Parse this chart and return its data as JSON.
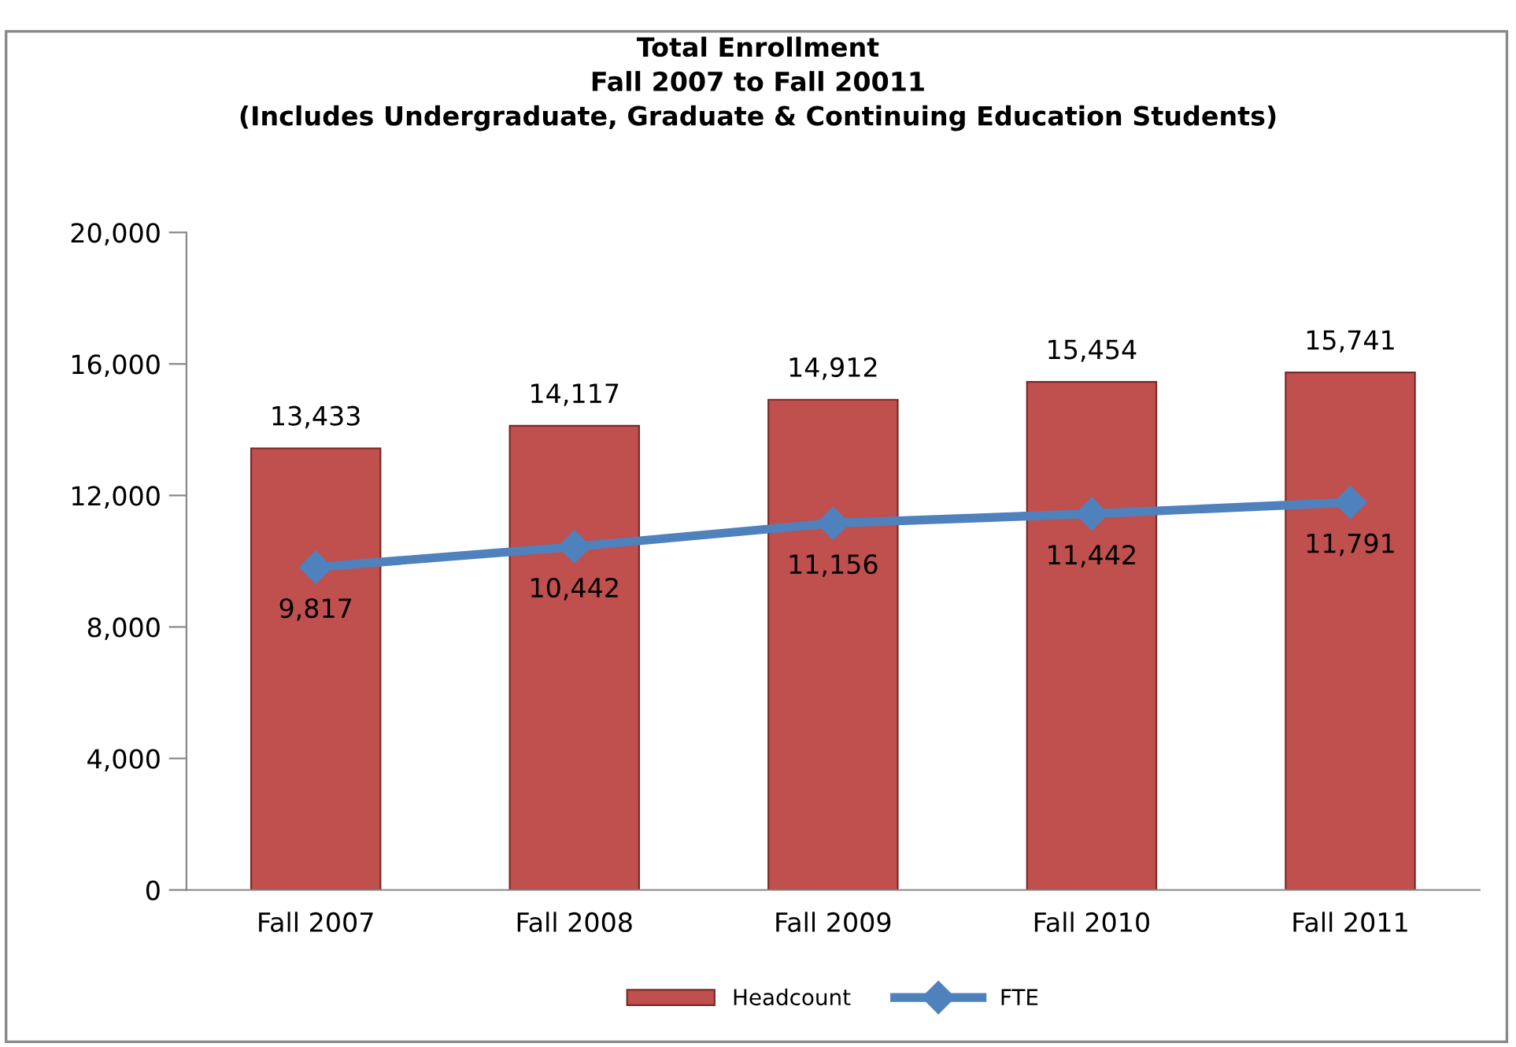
{
  "chart_data": {
    "type": "bar",
    "title": "Total Enrollment\nFall 2007 to Fall 20011\n(Includes Undergraduate, Graduate & Continuing Education Students)",
    "categories": [
      "Fall 2007",
      "Fall 2008",
      "Fall 2009",
      "Fall 2010",
      "Fall 2011"
    ],
    "series": [
      {
        "name": "Headcount",
        "color": "#c0504d",
        "values": [
          13433,
          14117,
          14912,
          15454,
          15741
        ],
        "value_labels": [
          "13,433",
          "14,117",
          "14,912",
          "15,454",
          "15,741"
        ]
      },
      {
        "name": "FTE",
        "type": "line",
        "color": "#4f81bd",
        "marker": "diamond",
        "values": [
          9817,
          10442,
          11156,
          11442,
          11791
        ],
        "value_labels": [
          "9,817",
          "10,442",
          "11,156",
          "11,442",
          "11,791"
        ]
      }
    ],
    "ylim": [
      0,
      20000
    ],
    "yticks": [
      {
        "value": 0,
        "label": "0"
      },
      {
        "value": 4000,
        "label": "4,000"
      },
      {
        "value": 8000,
        "label": "8,000"
      },
      {
        "value": 12000,
        "label": "12,000"
      },
      {
        "value": 16000,
        "label": "16,000"
      },
      {
        "value": 20000,
        "label": "20,000"
      }
    ],
    "grid": false,
    "legend": "bottom"
  }
}
